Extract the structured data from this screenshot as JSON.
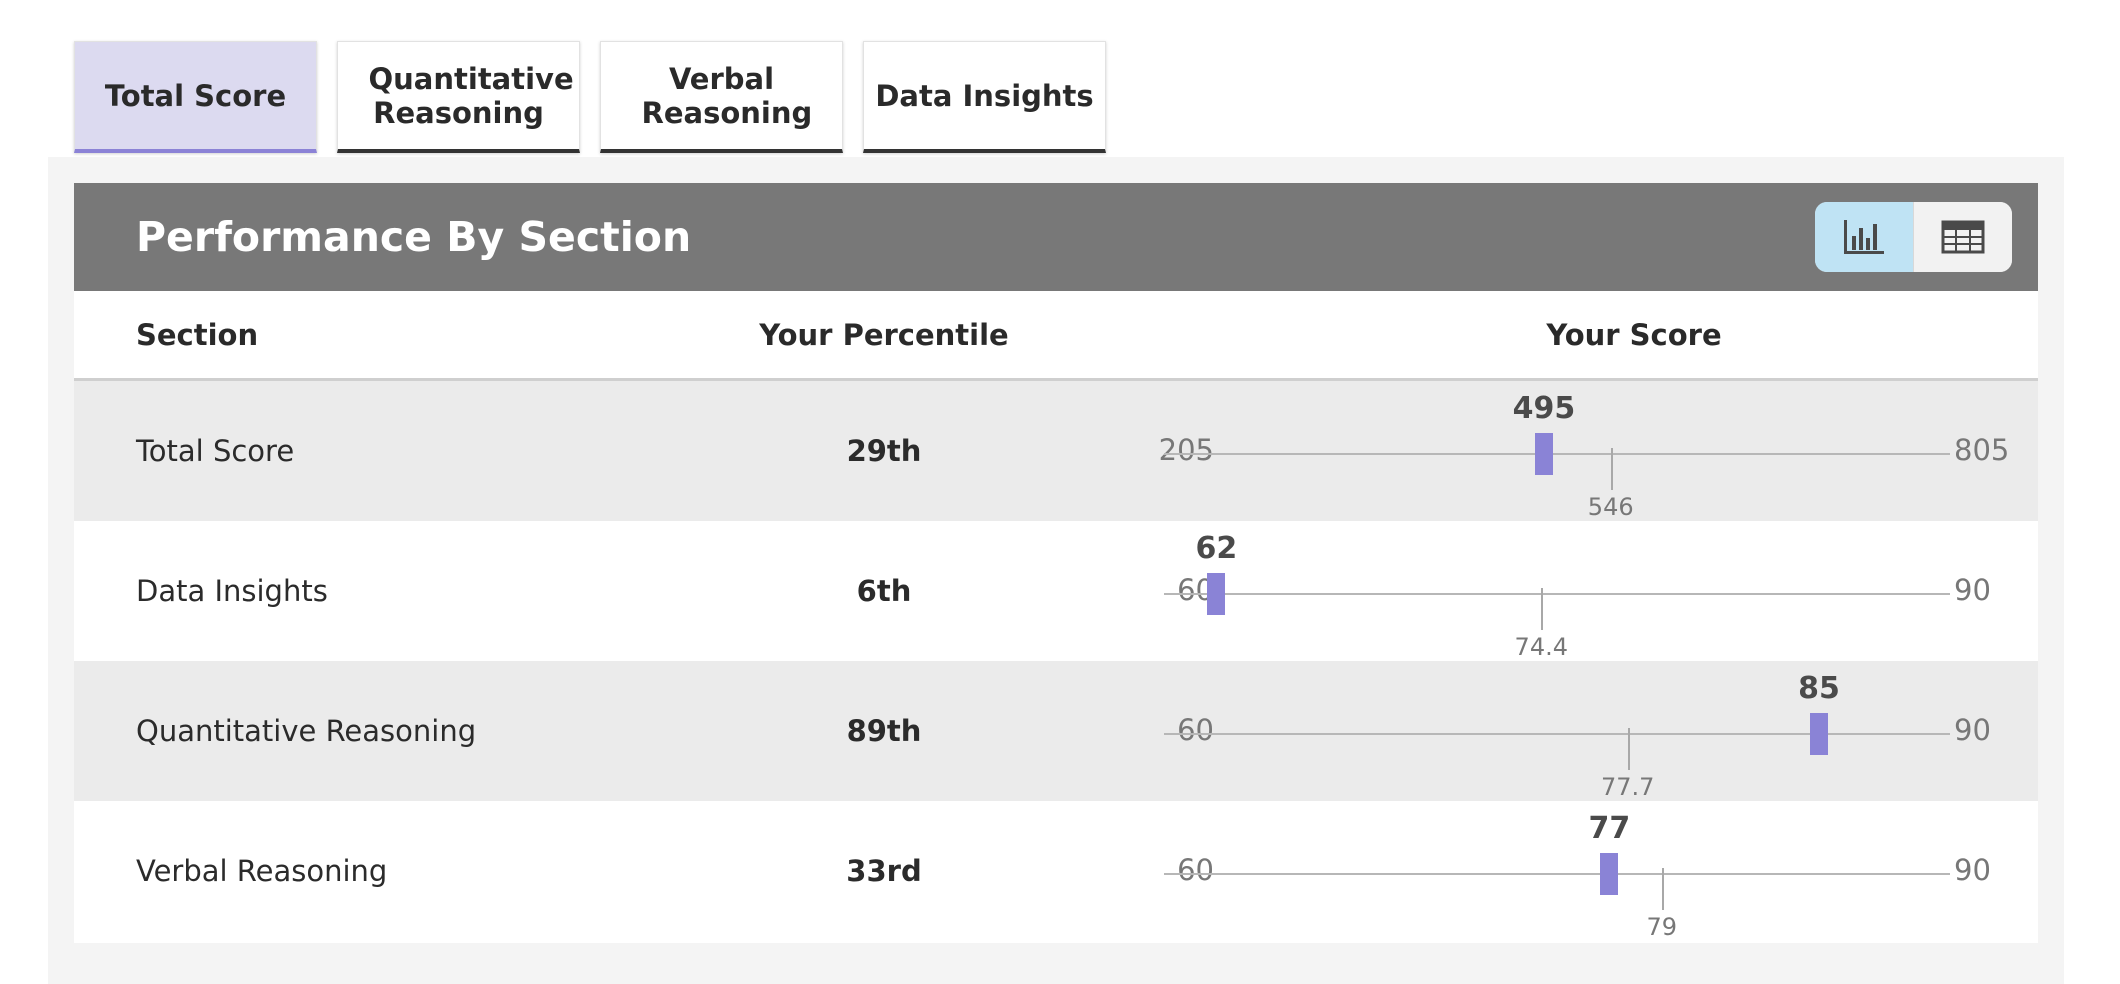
{
  "tabs": [
    {
      "label": "Total Score",
      "active": true
    },
    {
      "label": "Quantitative Reasoning",
      "active": false
    },
    {
      "label": "Verbal Reasoning",
      "active": false
    },
    {
      "label": "Data Insights",
      "active": false
    }
  ],
  "panel": {
    "title": "Performance By Section",
    "view_toggle": {
      "selected": "chart",
      "icons": [
        "bar-chart-icon",
        "table-grid-icon"
      ]
    }
  },
  "columns": {
    "section": "Section",
    "percentile": "Your Percentile",
    "score": "Your Score"
  },
  "rows": [
    {
      "section": "Total Score",
      "percentile": "29th",
      "min": 205,
      "max": 805,
      "score": 495,
      "average": 546
    },
    {
      "section": "Data Insights",
      "percentile": "6th",
      "min": 60,
      "max": 90,
      "score": 62,
      "average": 74.4
    },
    {
      "section": "Quantitative Reasoning",
      "percentile": "89th",
      "min": 60,
      "max": 90,
      "score": 85,
      "average": 77.7
    },
    {
      "section": "Verbal Reasoning",
      "percentile": "33rd",
      "min": 60,
      "max": 90,
      "score": 77,
      "average": 79
    }
  ],
  "colors": {
    "accent": "#8a83d6",
    "active_tab": "#dcdaf0",
    "header_bar": "#787878",
    "toggle_active": "#bfe3f4",
    "row_shade": "#ebebeb"
  }
}
